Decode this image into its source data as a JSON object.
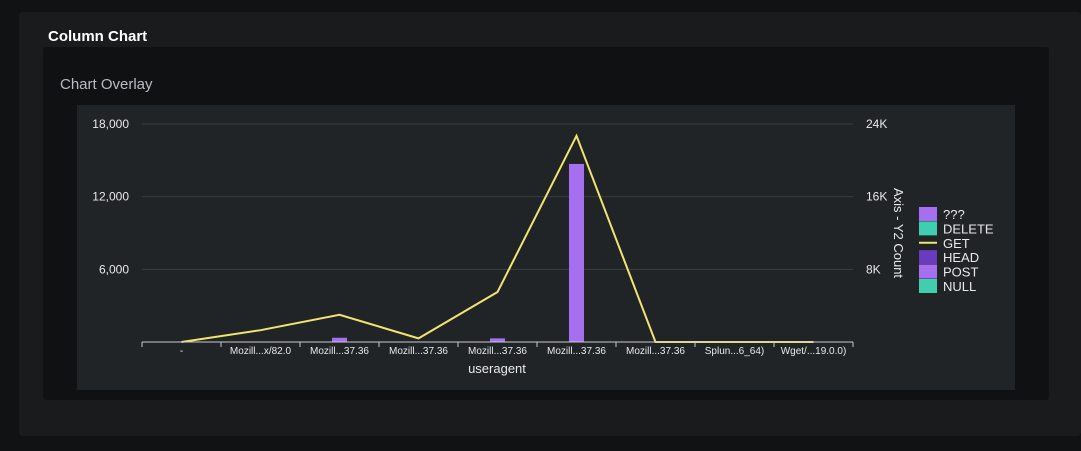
{
  "panel": {
    "title": "Column Chart"
  },
  "chart_data": {
    "type": "bar",
    "title": "Chart Overlay",
    "xlabel": "useragent",
    "ylabel": "",
    "y2label": "Axis - Y2 Count",
    "categories": [
      "-",
      "Mozill...x/82.0",
      "Mozill...37.36",
      "Mozill...37.36",
      "Mozill...37.36",
      "Mozill...37.36",
      "Mozill...37.36",
      "Splun...6_64)",
      "Wget/...19.0.0)"
    ],
    "ylim": [
      0,
      18000
    ],
    "y_ticks": [
      "6,000",
      "12,000",
      "18,000"
    ],
    "y_tick_values": [
      6000,
      12000,
      18000
    ],
    "y2lim": [
      0,
      24000
    ],
    "y2_ticks": [
      "8K",
      "16K",
      "24K"
    ],
    "y2_tick_values": [
      8000,
      16000,
      24000
    ],
    "grid": true,
    "legend_position": "right",
    "series": [
      {
        "name": "???",
        "kind": "bar",
        "color": "#a66ff0",
        "values": [
          0,
          0,
          0,
          0,
          0,
          0,
          0,
          0,
          0
        ]
      },
      {
        "name": "DELETE",
        "kind": "bar",
        "color": "#3fcfb0",
        "values": [
          0,
          0,
          0,
          0,
          0,
          0,
          0,
          0,
          0
        ]
      },
      {
        "name": "GET",
        "kind": "line",
        "axis": "y2",
        "color": "#f2e46f",
        "values": [
          0,
          1300,
          3000,
          400,
          5500,
          22700,
          0,
          0,
          0
        ]
      },
      {
        "name": "HEAD",
        "kind": "bar",
        "color": "#6a3cbd",
        "values": [
          0,
          0,
          0,
          0,
          0,
          0,
          0,
          0,
          0
        ]
      },
      {
        "name": "POST",
        "kind": "bar",
        "color": "#a66ff0",
        "values": [
          0,
          0,
          350,
          0,
          300,
          14700,
          0,
          0,
          0
        ]
      },
      {
        "name": "NULL",
        "kind": "bar",
        "color": "#3fcfb0",
        "values": [
          0,
          0,
          0,
          0,
          0,
          0,
          0,
          0,
          0
        ]
      }
    ]
  }
}
